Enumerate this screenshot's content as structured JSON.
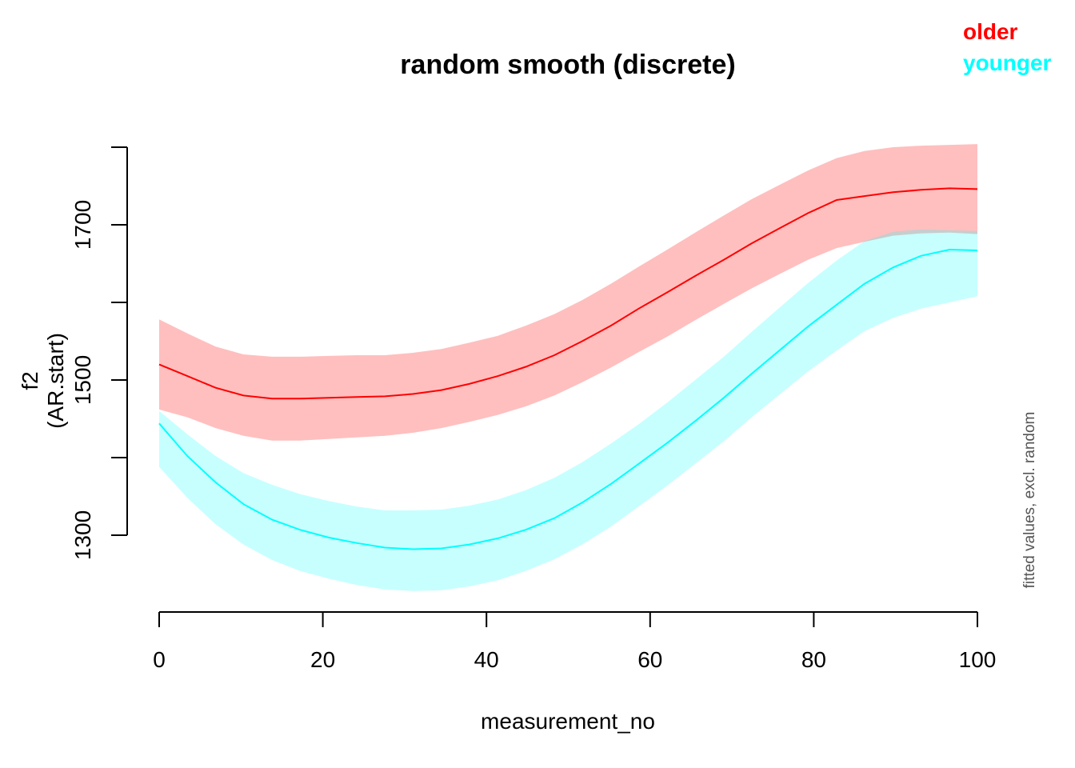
{
  "chart_data": {
    "type": "line",
    "title": "random smooth (discrete)",
    "xlabel": "measurement_no",
    "ylabel_line1": "f2",
    "ylabel_line2": "(AR.start)",
    "side_note": "fitted values, excl. random",
    "xlim": [
      0,
      100
    ],
    "ylim": [
      1200,
      1800
    ],
    "x_ticks": [
      0,
      20,
      40,
      60,
      80,
      100
    ],
    "x_tick_labels": [
      "0",
      "20",
      "40",
      "60",
      "80",
      "100"
    ],
    "y_ticks": [
      1300,
      1400,
      1500,
      1600,
      1700,
      1800
    ],
    "y_tick_labels": [
      "1300",
      "",
      "1500",
      "",
      "1700",
      ""
    ],
    "series": [
      {
        "name": "older",
        "color": "#ff0000",
        "band_color": "rgba(255,0,0,0.25)",
        "x": [
          0,
          3.45,
          6.9,
          10.3,
          13.8,
          17.2,
          20.7,
          24.1,
          27.6,
          31,
          34.5,
          37.9,
          41.4,
          44.8,
          48.3,
          51.7,
          55.2,
          58.6,
          62.1,
          65.5,
          69,
          72.4,
          75.9,
          79.3,
          82.8,
          86.2,
          89.7,
          93.1,
          96.6,
          100
        ],
        "fit": [
          1520,
          1505,
          1490,
          1480,
          1476,
          1476,
          1477,
          1478,
          1479,
          1482,
          1487,
          1495,
          1505,
          1517,
          1532,
          1550,
          1570,
          1592,
          1613,
          1634,
          1655,
          1676,
          1696,
          1715,
          1732,
          1737,
          1742,
          1745,
          1747,
          1746
        ],
        "lower": [
          1462,
          1452,
          1438,
          1428,
          1422,
          1422,
          1424,
          1426,
          1428,
          1432,
          1438,
          1446,
          1455,
          1466,
          1480,
          1497,
          1516,
          1536,
          1556,
          1577,
          1598,
          1618,
          1637,
          1655,
          1670,
          1678,
          1686,
          1689,
          1690,
          1688
        ],
        "upper": [
          1578,
          1560,
          1543,
          1533,
          1530,
          1530,
          1531,
          1532,
          1532,
          1535,
          1540,
          1548,
          1557,
          1570,
          1585,
          1603,
          1624,
          1646,
          1668,
          1690,
          1712,
          1733,
          1752,
          1770,
          1786,
          1795,
          1800,
          1802,
          1803,
          1804
        ]
      },
      {
        "name": "younger",
        "color": "#00ffff",
        "band_color": "rgba(0,255,255,0.22)",
        "x": [
          0,
          3.45,
          6.9,
          10.3,
          13.8,
          17.2,
          20.7,
          24.1,
          27.6,
          31,
          34.5,
          37.9,
          41.4,
          44.8,
          48.3,
          51.7,
          55.2,
          58.6,
          62.1,
          65.5,
          69,
          72.4,
          75.9,
          79.3,
          82.8,
          86.2,
          89.7,
          93.1,
          96.6,
          100
        ],
        "fit": [
          1444,
          1402,
          1368,
          1340,
          1320,
          1307,
          1297,
          1290,
          1284,
          1282,
          1283,
          1288,
          1296,
          1307,
          1322,
          1342,
          1366,
          1392,
          1419,
          1447,
          1477,
          1508,
          1539,
          1569,
          1597,
          1624,
          1645,
          1660,
          1668,
          1667
        ],
        "lower": [
          1388,
          1348,
          1314,
          1288,
          1268,
          1254,
          1244,
          1236,
          1230,
          1228,
          1229,
          1234,
          1242,
          1254,
          1269,
          1288,
          1311,
          1337,
          1364,
          1392,
          1421,
          1452,
          1482,
          1511,
          1538,
          1563,
          1580,
          1592,
          1600,
          1608
        ],
        "upper": [
          1460,
          1430,
          1402,
          1380,
          1365,
          1353,
          1344,
          1337,
          1332,
          1332,
          1333,
          1338,
          1346,
          1358,
          1374,
          1394,
          1418,
          1443,
          1471,
          1500,
          1530,
          1562,
          1594,
          1625,
          1654,
          1679,
          1691,
          1694,
          1693,
          1692
        ]
      }
    ]
  }
}
